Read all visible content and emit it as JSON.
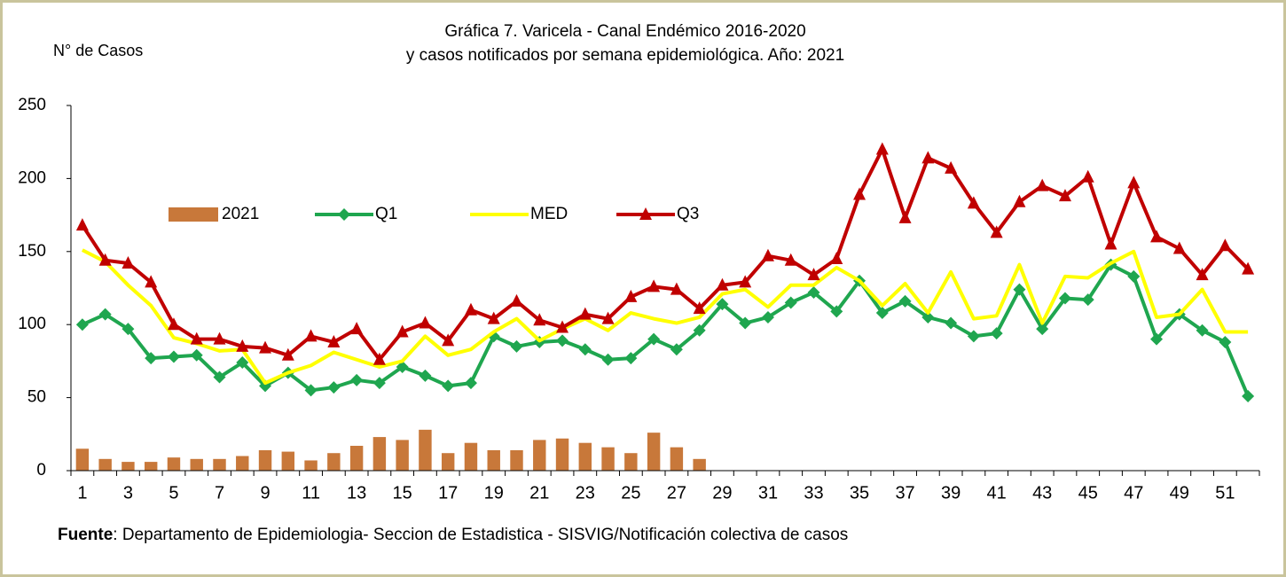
{
  "chart_data": {
    "type": "combo",
    "title": "Gráfica 7.  Varicela - Canal Endémico 2016-2020",
    "subtitle": "y casos notificados por semana epidemiológica.  Año: 2021",
    "y_axis_label": "N° de Casos",
    "footer": {
      "bold": "Fuente",
      "text": ": Departamento de Epidemiologia- Seccion de Estadistica - SISVIG/Notificación colectiva de casos"
    },
    "categories": [
      "1",
      null,
      "3",
      null,
      "5",
      null,
      "7",
      null,
      "9",
      null,
      "11",
      null,
      "13",
      null,
      "15",
      null,
      "17",
      null,
      "19",
      null,
      "21",
      null,
      "23",
      null,
      "25",
      null,
      "27",
      null,
      "29",
      null,
      "31",
      null,
      "33",
      null,
      "35",
      null,
      "37",
      null,
      "39",
      null,
      "41",
      null,
      "43",
      null,
      "45",
      null,
      "47",
      null,
      "49",
      null,
      "51",
      null
    ],
    "ylim": [
      0,
      250
    ],
    "yticks": [
      0,
      50,
      100,
      150,
      200,
      250
    ],
    "grid": false,
    "series": [
      {
        "name": "2021",
        "kind": "bar",
        "color": "#c8783a",
        "values": [
          15,
          8,
          6,
          6,
          9,
          8,
          8,
          10,
          14,
          13,
          7,
          12,
          17,
          23,
          21,
          28,
          12,
          19,
          14,
          14,
          21,
          22,
          19,
          16,
          12,
          26,
          16,
          8,
          null,
          null,
          null,
          null,
          null,
          null,
          null,
          null,
          null,
          null,
          null,
          null,
          null,
          null,
          null,
          null,
          null,
          null,
          null,
          null,
          null,
          null,
          null,
          null
        ]
      },
      {
        "name": "Q1",
        "kind": "line",
        "marker": "diamond",
        "color": "#1fa64f",
        "values": [
          100,
          107,
          97,
          77,
          78,
          79,
          64,
          74,
          58,
          67,
          55,
          57,
          62,
          60,
          71,
          65,
          58,
          60,
          92,
          85,
          88,
          89,
          83,
          76,
          77,
          90,
          83,
          96,
          114,
          101,
          105,
          115,
          122,
          109,
          130,
          108,
          116,
          105,
          101,
          92,
          94,
          124,
          97,
          118,
          117,
          141,
          133,
          90,
          107,
          96,
          88,
          51
        ]
      },
      {
        "name": "MED",
        "kind": "line",
        "marker": "none",
        "color": "#ffff00",
        "values": [
          151,
          143,
          127,
          113,
          91,
          87,
          82,
          83,
          60,
          67,
          72,
          81,
          76,
          71,
          75,
          92,
          79,
          83,
          95,
          104,
          89,
          97,
          104,
          96,
          108,
          104,
          101,
          105,
          121,
          124,
          112,
          127,
          127,
          139,
          130,
          113,
          128,
          108,
          136,
          104,
          106,
          141,
          101,
          133,
          132,
          142,
          150,
          105,
          107,
          124,
          95,
          95
        ]
      },
      {
        "name": "Q3",
        "kind": "line",
        "marker": "triangle",
        "color": "#c00000",
        "values": [
          168,
          144,
          142,
          129,
          100,
          90,
          90,
          85,
          84,
          79,
          92,
          88,
          97,
          76,
          95,
          101,
          89,
          110,
          104,
          116,
          103,
          98,
          107,
          104,
          119,
          126,
          124,
          111,
          127,
          129,
          147,
          144,
          134,
          145,
          189,
          220,
          173,
          214,
          207,
          183,
          163,
          184,
          195,
          188,
          201,
          155,
          197,
          160,
          152,
          134,
          154,
          138
        ]
      }
    ]
  }
}
